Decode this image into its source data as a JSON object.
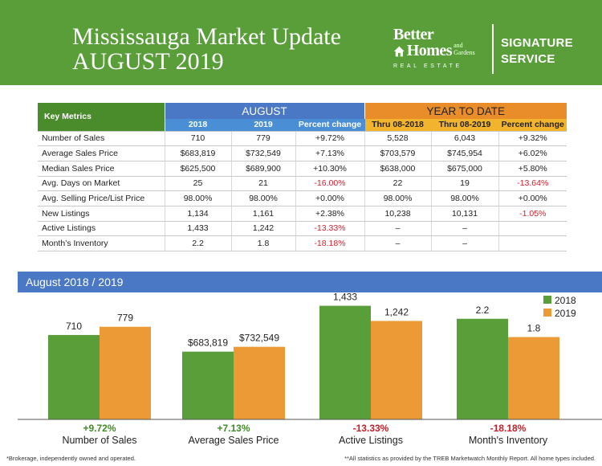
{
  "header": {
    "title_line1": "Mississauga Market Update",
    "title_line2": "AUGUST 2019",
    "brand_line1": "Better",
    "brand_line2": "Homes",
    "brand_line2b": "and Gardens",
    "brand_line3": "REAL ESTATE",
    "service_line1": "SIGNATURE",
    "service_line2": "SERVICE"
  },
  "colors": {
    "header_green": "#5a9e3a",
    "blue": "#4a78c4",
    "orange": "#e88d2a",
    "series_2018": "#5a9e3a",
    "series_2019": "#eb9a35",
    "positive": "#3f8b25",
    "negative": "#c42028"
  },
  "table": {
    "key_metrics_label": "Key Metrics",
    "august_label": "AUGUST",
    "ytd_label": "YEAR TO DATE",
    "subheaders": [
      "2018",
      "2019",
      "Percent change",
      "Thru 08-2018",
      "Thru 08-2019",
      "Percent change"
    ],
    "rows": [
      {
        "metric": "Number of Sales",
        "cells": [
          "710",
          "779",
          "+9.72%",
          "5,528",
          "6,043",
          "+9.32%"
        ]
      },
      {
        "metric": "Average Sales Price",
        "cells": [
          "$683,819",
          "$732,549",
          "+7.13%",
          "$703,579",
          "$745,954",
          "+6.02%"
        ]
      },
      {
        "metric": "Median Sales Price",
        "cells": [
          "$625,500",
          "$689,900",
          "+10.30%",
          "$638,000",
          "$675,000",
          "+5.80%"
        ]
      },
      {
        "metric": "Avg. Days on Market",
        "cells": [
          "25",
          "21",
          "-16.00%",
          "22",
          "19",
          "-13.64%"
        ]
      },
      {
        "metric": "Avg. Selling Price/List Price",
        "cells": [
          "98.00%",
          "98.00%",
          "+0.00%",
          "98.00%",
          "98.00%",
          "+0.00%"
        ]
      },
      {
        "metric": "New Listings",
        "cells": [
          "1,134",
          "1,161",
          "+2.38%",
          "10,238",
          "10,131",
          "-1.05%"
        ]
      },
      {
        "metric": "Active Listings",
        "cells": [
          "1,433",
          "1,242",
          "-13.33%",
          "–",
          "–",
          ""
        ]
      },
      {
        "metric": "Month’s Inventory",
        "cells": [
          "2.2",
          "1.8",
          "-18.18%",
          "–",
          "–",
          ""
        ]
      }
    ]
  },
  "section_title": "August 2018 / 2019",
  "chart_data": {
    "type": "bar",
    "categories": [
      "Number of Sales",
      "Average Sales Price",
      "Active Listings",
      "Month's Inventory"
    ],
    "series": [
      {
        "name": "2018",
        "values": [
          710,
          683819,
          1433,
          2.2
        ],
        "labels": [
          "710",
          "$683,819",
          "1,433",
          "2.2"
        ]
      },
      {
        "name": "2019",
        "values": [
          779,
          732549,
          1242,
          1.8
        ],
        "labels": [
          "779",
          "$732,549",
          "1,242",
          "1.8"
        ]
      }
    ],
    "percent_change": [
      "+9.72%",
      "+7.13%",
      "-13.33%",
      "-18.18%"
    ],
    "legend_position": "top-right",
    "independent_scales": true,
    "scale_max": [
      1000,
      1200000,
      1500,
      2.6
    ]
  },
  "footer": {
    "left": "*Brokerage, independently owned and operated.",
    "right": "**All statistics as provided by the TREB Marketwatch Monthly Report. All home types included."
  }
}
